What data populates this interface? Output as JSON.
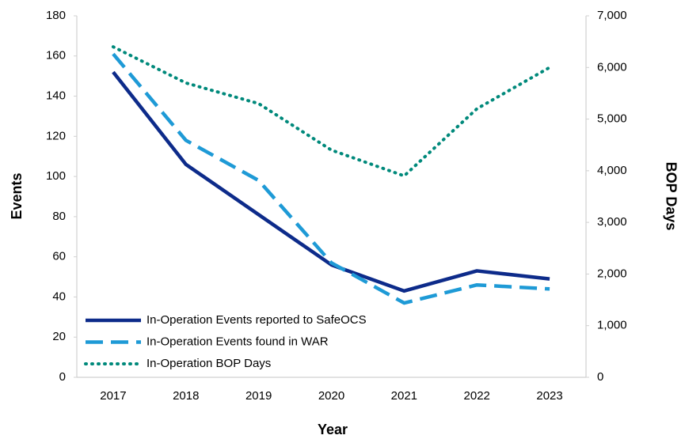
{
  "chart_data": {
    "type": "line",
    "x_label": "Year",
    "y_label": "Events",
    "y2_label": "BOP Days",
    "categories": [
      "2017",
      "2018",
      "2019",
      "2020",
      "2021",
      "2022",
      "2023"
    ],
    "series": [
      {
        "name": "In-Operation Events reported to SafeOCS",
        "color": "#0d2b8a",
        "line_style": "solid",
        "values": [
          152,
          106,
          81,
          56,
          43,
          53,
          49
        ]
      },
      {
        "name": "In-Operation Events found in WAR",
        "color": "#1e9ad6",
        "line_style": "dashed",
        "values": [
          161,
          118,
          98,
          57,
          37,
          46,
          44
        ]
      },
      {
        "name": "In-Operation BOP Days",
        "color": "#00897b",
        "line_style": "dotted",
        "axis": "y2",
        "values": [
          6400,
          5700,
          5300,
          4400,
          3900,
          5200,
          6000
        ]
      }
    ],
    "ylim": [
      0,
      180
    ],
    "yticks": [
      0,
      20,
      40,
      60,
      80,
      100,
      120,
      140,
      160,
      180
    ],
    "y2lim": [
      0,
      7000
    ],
    "y2ticks": [
      0,
      {
        "value": 1000,
        "label": "1,000"
      },
      {
        "value": 2000,
        "label": "2,000"
      },
      {
        "value": 3000,
        "label": "3,000"
      },
      {
        "value": 4000,
        "label": "4,000"
      },
      {
        "value": 5000,
        "label": "5,000"
      },
      {
        "value": 6000,
        "label": "6,000"
      },
      {
        "value": 7000,
        "label": "7,000"
      }
    ],
    "grid": false,
    "legend": "lower left"
  }
}
